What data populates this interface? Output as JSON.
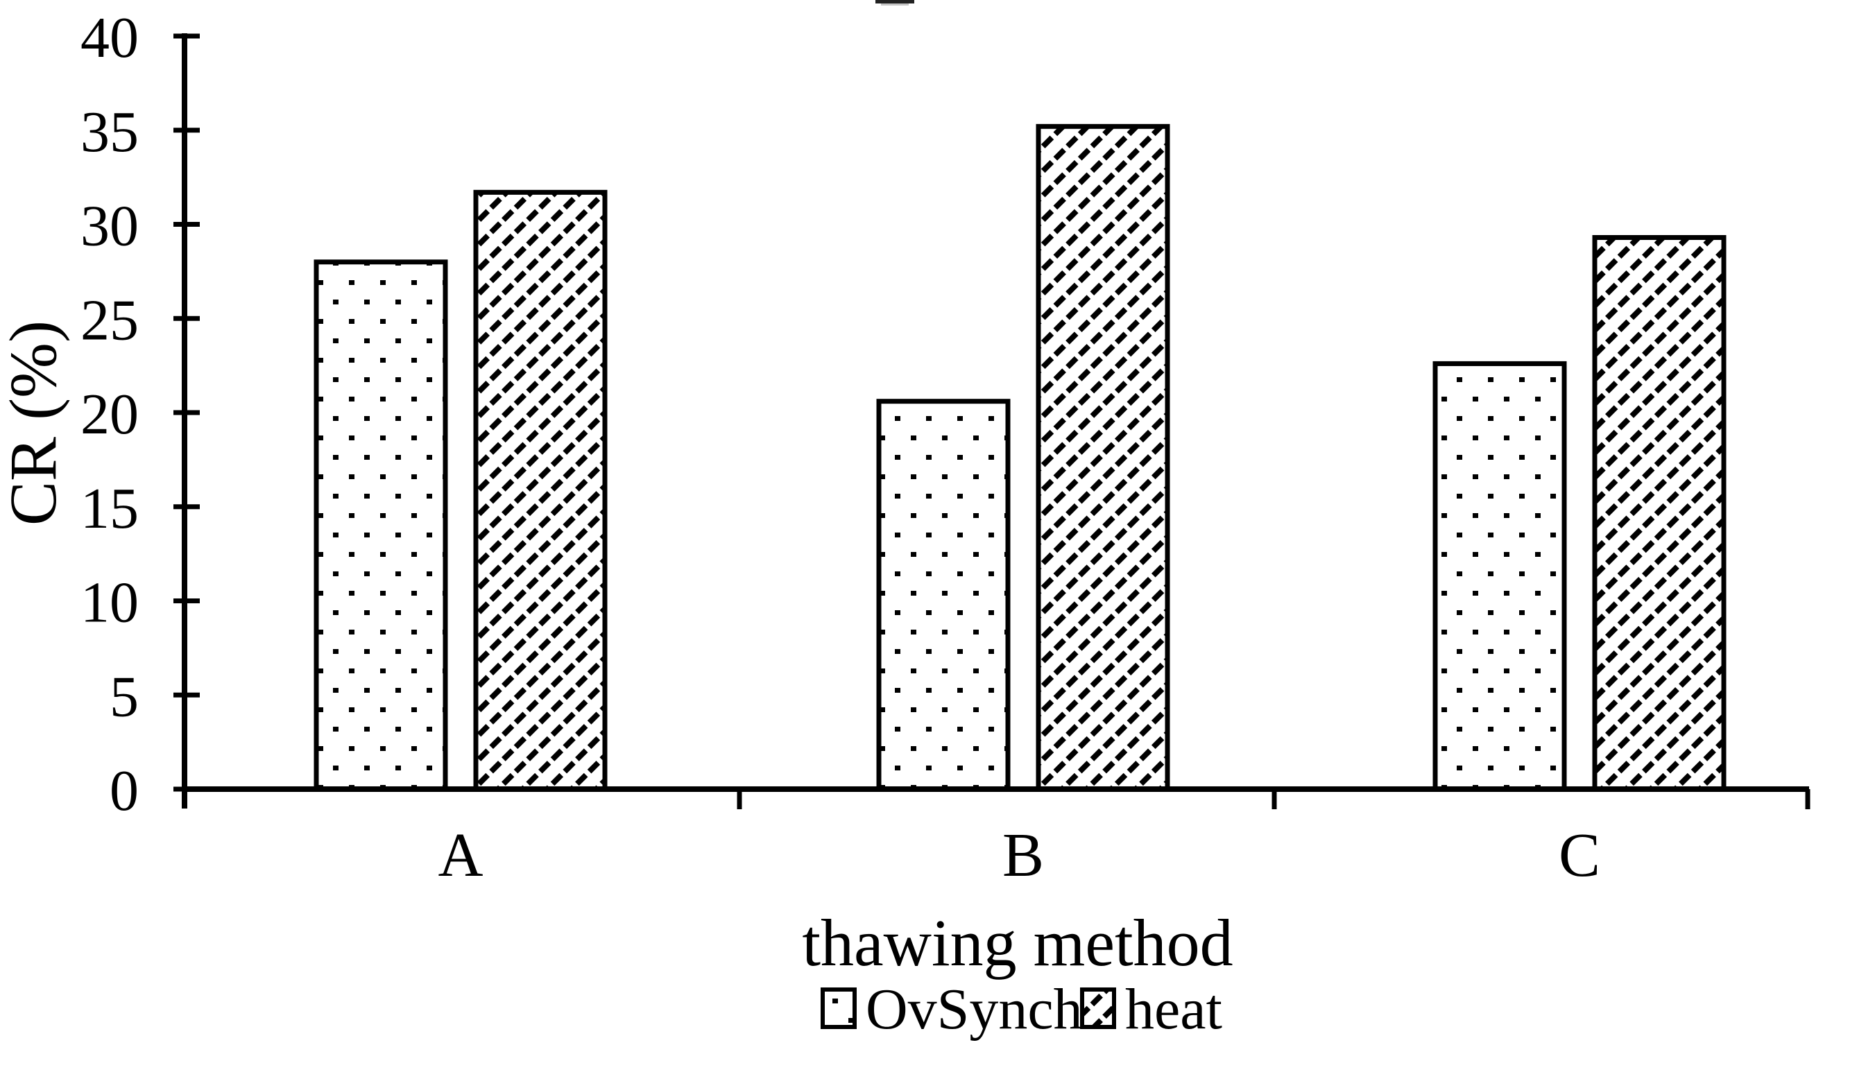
{
  "figure": {
    "background_color": "#ffffff",
    "ink_color": "#000000",
    "top_center_artifact": "tiny fragment of cropped text at very top center"
  },
  "chart_data": {
    "type": "bar",
    "title": "",
    "xlabel": "thawing method",
    "ylabel": "CR (%)",
    "categories": [
      "A",
      "B",
      "C"
    ],
    "series": [
      {
        "name": "OvSynch",
        "pattern": "dotted",
        "values": [
          28.0,
          20.6,
          22.6
        ]
      },
      {
        "name": "heat",
        "pattern": "diagonal-hatch",
        "values": [
          31.7,
          35.2,
          29.3
        ]
      }
    ],
    "ylim": [
      0,
      40
    ],
    "y_ticks": [
      0,
      5,
      10,
      15,
      20,
      25,
      30,
      35,
      40
    ],
    "grid": false,
    "legend": {
      "position": "bottom-center",
      "entries": [
        "OvSynch",
        "heat"
      ]
    },
    "bar_fill": "#ffffff",
    "bar_border": "#000000"
  }
}
